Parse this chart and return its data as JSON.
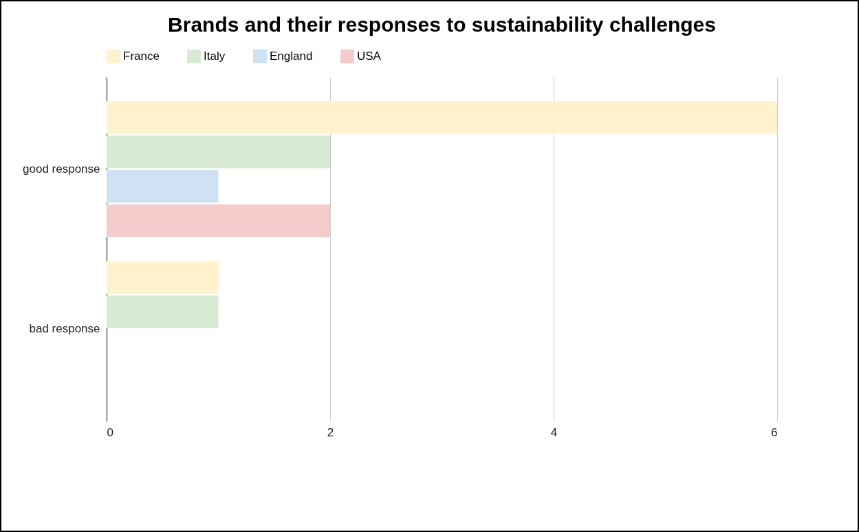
{
  "chart_data": {
    "type": "bar",
    "orientation": "horizontal",
    "title": "Brands and their responses to sustainability challenges",
    "categories": [
      "good response",
      "bad response"
    ],
    "series": [
      {
        "name": "France",
        "color": "#fff2cc",
        "values": [
          6,
          1
        ]
      },
      {
        "name": "Italy",
        "color": "#d9ead3",
        "values": [
          2,
          1
        ]
      },
      {
        "name": "England",
        "color": "#cfe2f3",
        "values": [
          1,
          0
        ]
      },
      {
        "name": "USA",
        "color": "#f4cccc",
        "values": [
          2,
          0
        ]
      }
    ],
    "xlim": [
      0,
      6
    ],
    "xticks": [
      0,
      2,
      4,
      6
    ],
    "grid": "x",
    "legend": "top"
  }
}
